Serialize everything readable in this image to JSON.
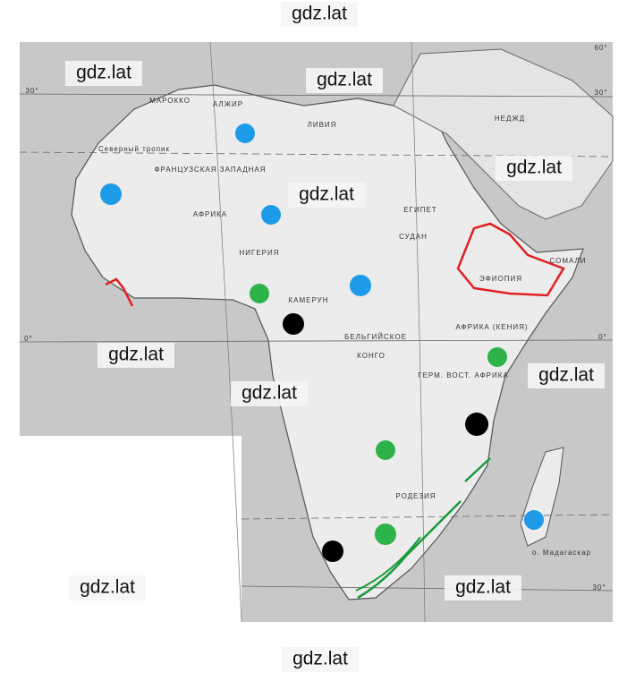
{
  "watermarks": [
    "gdz.lat",
    "gdz.lat",
    "gdz.lat",
    "gdz.lat",
    "gdz.lat",
    "gdz.lat",
    "gdz.lat",
    "gdz.lat",
    "gdz.lat",
    "gdz.lat",
    "gdz.lat"
  ],
  "map_labels": {
    "lat_30_left": "30°",
    "lat_0_left": "0°",
    "lon_60": "60°",
    "lat_30_right": "30°",
    "lat_0_right": "0°",
    "lat_30_bottom_right": "30°",
    "tropic": "Северный тропик",
    "morocco": "МАРОККО",
    "algeria": "АЛЖИР",
    "libya": "ЛИВИЯ",
    "egypt": "ЕГИПЕТ",
    "nejd": "НЕДЖД",
    "french_west": "ФРАНЦУЗСКАЯ ЗАПАДНАЯ",
    "africa": "АФРИКА",
    "nigeria": "НИГЕРИЯ",
    "cameroon": "КАМЕРУН",
    "sudan": "СУДАН",
    "ethiopia": "ЭФИОПИЯ",
    "belgian": "БЕЛЬГИЙСКОЕ",
    "congo": "КОНГО",
    "kenya": "АФРИКА (КЕНИЯ)",
    "tanganyika": "ГЕРМ. ВОСТ. АФРИКА",
    "rhodesia": "РОДЕЗИЯ",
    "madagascar": "о. Мадагаскар",
    "somali": "СОМАЛИ"
  }
}
